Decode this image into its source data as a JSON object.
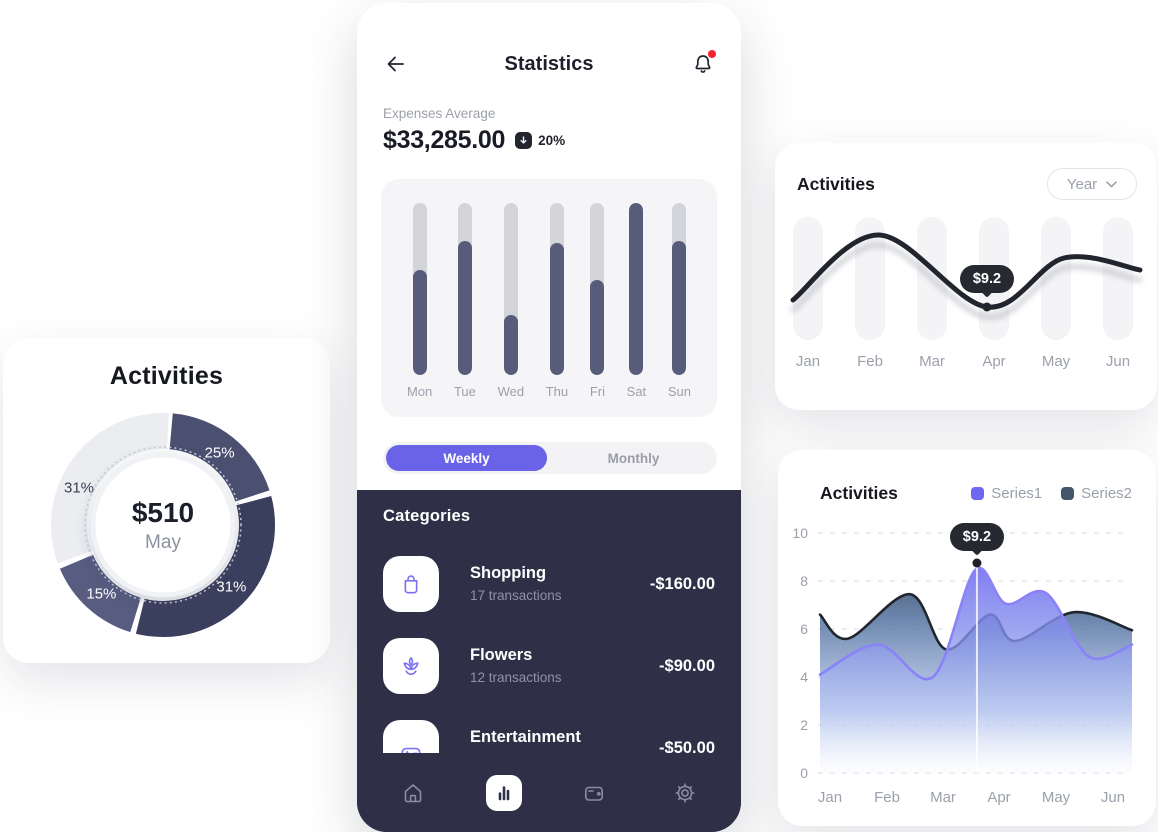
{
  "page": {
    "background": "#FFFFFF"
  },
  "phone": {
    "header": {
      "title": "Statistics"
    },
    "expenses": {
      "label": "Expenses Average",
      "amount": "$33,285.00",
      "change": "20%"
    },
    "toggle": {
      "weekly": "Weekly",
      "monthly": "Monthly",
      "selected": "Weekly"
    },
    "categories": {
      "title": "Categories",
      "items": [
        {
          "icon": "shopping-bag",
          "name": "Shopping",
          "subtitle": "17 transactions",
          "amount": "-$160.00"
        },
        {
          "icon": "flower",
          "name": "Flowers",
          "subtitle": "12 transactions",
          "amount": "-$90.00"
        },
        {
          "icon": "gamepad",
          "name": "Entertainment",
          "subtitle": "",
          "amount": "-$50.00"
        }
      ]
    },
    "nav": {
      "items": [
        "home",
        "statistics",
        "wallet",
        "settings"
      ],
      "active": "statistics"
    }
  },
  "donut_card": {
    "title": "Activities"
  },
  "line_card": {
    "title": "Activities",
    "filter_value": "Year",
    "tooltip": "$9.2"
  },
  "area_card": {
    "title": "Activities",
    "tooltip": "$9.2",
    "legend": [
      {
        "label": "Series1",
        "color": "#6F66F2"
      },
      {
        "label": "Series2",
        "color": "#44566B"
      }
    ]
  },
  "colors": {
    "accent": "#6A63E8",
    "navy": "#2F3047",
    "bar_fill": "#575C7B",
    "bar_track": "#D3D4D9",
    "tooltip_bg": "#272931"
  },
  "chart_data": [
    {
      "id": "weekly-expenses-bars",
      "type": "bar",
      "title": "",
      "categories": [
        "Mon",
        "Tue",
        "Wed",
        "Thu",
        "Fri",
        "Sat",
        "Sun"
      ],
      "values": [
        61,
        78,
        35,
        77,
        55,
        100,
        78
      ],
      "unit": "percent_of_track",
      "ylim": [
        0,
        100
      ],
      "bar_color": "#575C7B",
      "track_color": "#D3D4D9"
    },
    {
      "id": "activities-donut",
      "type": "pie",
      "title": "Activities",
      "labels": [
        "25%",
        "31%",
        "15%",
        "31%"
      ],
      "values": [
        25,
        31,
        15,
        31
      ],
      "colors": [
        "#4B5071",
        "#3B3F5E",
        "#575C80",
        "#EBEDF1"
      ],
      "label_colors": [
        "#FFFFFF",
        "#FFFFFF",
        "#FFFFFF",
        "#3A3F51"
      ],
      "segment_angles": [
        [
          5,
          72
        ],
        [
          75,
          194
        ],
        [
          197,
          247
        ],
        [
          250,
          363
        ]
      ],
      "label_angles": [
        38,
        132,
        222,
        294
      ],
      "center_value": "$510",
      "center_label": "May"
    },
    {
      "id": "activities-year-line",
      "type": "line",
      "title": "Activities",
      "filter": "Year",
      "x": [
        "Jan",
        "Feb",
        "Mar",
        "Apr",
        "May",
        "Jun"
      ],
      "points_norm": [
        [
          0.0,
          0.785
        ],
        [
          0.248,
          0.46
        ],
        [
          0.559,
          0.82
        ],
        [
          0.781,
          0.575
        ],
        [
          1.0,
          0.635
        ]
      ],
      "tooltip": {
        "label": "$9.2",
        "point_index": 2,
        "x": "Apr"
      },
      "grid": false,
      "line_color": "#23252E"
    },
    {
      "id": "activities-series-area",
      "type": "area",
      "title": "Activities",
      "x": [
        "Jan",
        "Feb",
        "Mar",
        "Apr",
        "May",
        "Jun"
      ],
      "ylim": [
        0,
        10
      ],
      "yticks": [
        0,
        2,
        4,
        6,
        8,
        10
      ],
      "grid": "dashed-horizontal",
      "legend_position": "top-right",
      "series": [
        {
          "name": "Series2",
          "color": "#44566B",
          "stroke": "#20262E",
          "points": [
            [
              0,
              6.6
            ],
            [
              0.09,
              5.6
            ],
            [
              0.288,
              7.45
            ],
            [
              0.404,
              5.15
            ],
            [
              0.545,
              6.6
            ],
            [
              0.625,
              5.5
            ],
            [
              0.814,
              6.7
            ],
            [
              1,
              5.95
            ]
          ]
        },
        {
          "name": "Series1",
          "color": "#6F66F2",
          "stroke": "#8A82F8",
          "points": [
            [
              0,
              4.1
            ],
            [
              0.186,
              5.35
            ],
            [
              0.362,
              4.0
            ],
            [
              0.497,
              8.45
            ],
            [
              0.596,
              7.05
            ],
            [
              0.724,
              7.5
            ],
            [
              0.862,
              4.85
            ],
            [
              1,
              5.35
            ]
          ]
        }
      ],
      "tooltip": {
        "label": "$9.2",
        "x_frac": 0.503,
        "value": 8.75
      }
    }
  ]
}
